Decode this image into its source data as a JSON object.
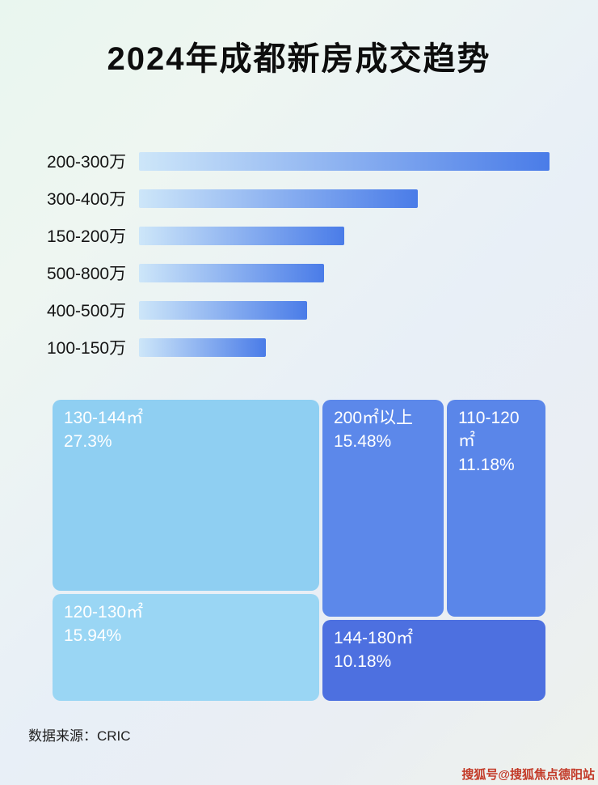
{
  "page": {
    "title": "2024年成都新房成交趋势",
    "source_label": "数据来源：CRIC",
    "watermark": "搜狐号@搜狐焦点德阳站"
  },
  "colors": {
    "bar_gradient_start": "#cde6f9",
    "bar_gradient_end": "#4a7ce8",
    "title_color": "#0d0d0d",
    "watermark_color": "#c33a28"
  },
  "chart_data": [
    {
      "type": "bar",
      "orientation": "horizontal",
      "title": "2024年成都新房成交趋势",
      "categories": [
        "200-300万",
        "300-400万",
        "150-200万",
        "500-800万",
        "400-500万",
        "100-150万"
      ],
      "values": [
        100,
        68,
        50,
        45,
        41,
        31
      ],
      "value_note": "no numeric labels shown in image; values are relative bar lengths estimated from pixels (longest bar = 100)",
      "xlabel": "",
      "ylabel": "",
      "grid": false,
      "legend": "none"
    },
    {
      "type": "treemap",
      "items": [
        {
          "label": "130-144㎡",
          "value": 27.3,
          "display": "27.3%",
          "color": "#8fcff2"
        },
        {
          "label": "120-130㎡",
          "value": 15.94,
          "display": "15.94%",
          "color": "#9ad6f4"
        },
        {
          "label": "200㎡以上",
          "value": 15.48,
          "display": "15.48%",
          "color": "#5c88ea"
        },
        {
          "label": "110-120㎡",
          "value": 11.18,
          "display": "11.18%",
          "color": "#5a86e9"
        },
        {
          "label": "144-180㎡",
          "value": 10.18,
          "display": "10.18%",
          "color": "#4d70e0"
        }
      ]
    }
  ]
}
